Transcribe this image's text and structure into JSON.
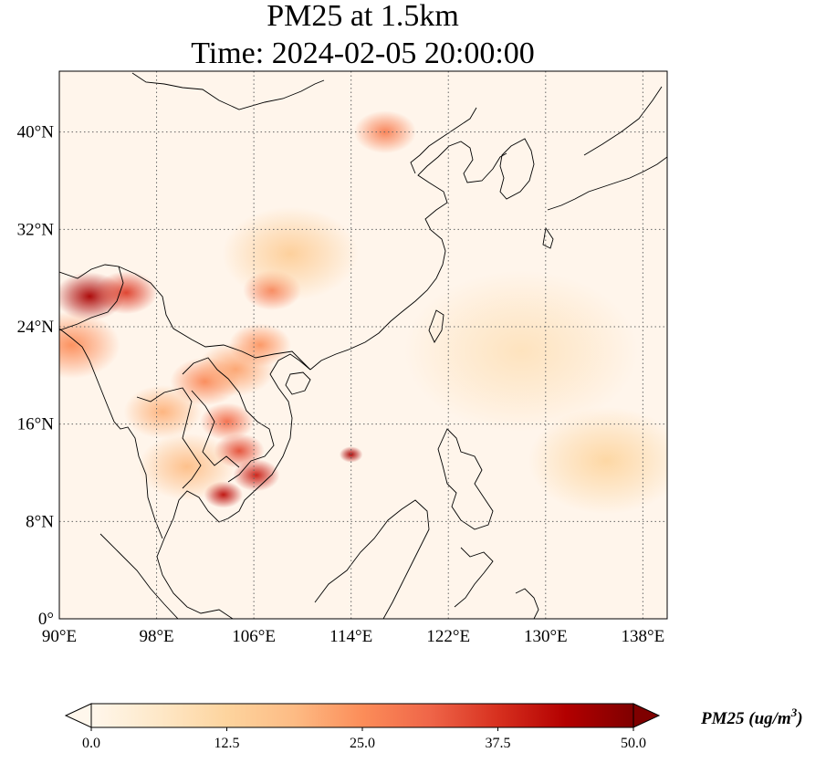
{
  "figure": {
    "title_line1": "PM25 at 1.5km",
    "title_line2": "Time: 2024-02-05 20:00:00"
  },
  "map": {
    "projection": "PlateCarree",
    "lon_range": [
      90,
      140
    ],
    "lat_range": [
      0,
      45
    ],
    "lon_ticks": [
      {
        "value": 90,
        "label": "90°E"
      },
      {
        "value": 98,
        "label": "98°E"
      },
      {
        "value": 106,
        "label": "106°E"
      },
      {
        "value": 114,
        "label": "114°E"
      },
      {
        "value": 122,
        "label": "122°E"
      },
      {
        "value": 130,
        "label": "130°E"
      },
      {
        "value": 138,
        "label": "138°E"
      }
    ],
    "lat_ticks": [
      {
        "value": 0,
        "label": "0°"
      },
      {
        "value": 8,
        "label": "8°N"
      },
      {
        "value": 16,
        "label": "16°N"
      },
      {
        "value": 24,
        "label": "24°N"
      },
      {
        "value": 32,
        "label": "32°N"
      },
      {
        "value": 40,
        "label": "40°N"
      }
    ],
    "gridlines": "dotted",
    "background_color": "#fff5eb",
    "hotspots": [
      {
        "lon": 92.5,
        "lat": 26.5,
        "value": 45,
        "spread": 1.8
      },
      {
        "lon": 95.5,
        "lat": 26.8,
        "value": 36,
        "spread": 1.6
      },
      {
        "lon": 91,
        "lat": 22.5,
        "value": 25,
        "spread": 2.5
      },
      {
        "lon": 103.5,
        "lat": 10.2,
        "value": 42,
        "spread": 1.0
      },
      {
        "lon": 106.2,
        "lat": 11.8,
        "value": 40,
        "spread": 1.2
      },
      {
        "lon": 104.8,
        "lat": 13.8,
        "value": 34,
        "spread": 1.3
      },
      {
        "lon": 103.8,
        "lat": 16.2,
        "value": 30,
        "spread": 1.4
      },
      {
        "lon": 102.0,
        "lat": 19.5,
        "value": 26,
        "spread": 1.8
      },
      {
        "lon": 104.5,
        "lat": 20.5,
        "value": 22,
        "spread": 2.0
      },
      {
        "lon": 106.5,
        "lat": 22.5,
        "value": 24,
        "spread": 1.6
      },
      {
        "lon": 107.5,
        "lat": 27.0,
        "value": 28,
        "spread": 1.5
      },
      {
        "lon": 114.0,
        "lat": 13.5,
        "value": 45,
        "spread": 0.6
      },
      {
        "lon": 116.8,
        "lat": 40.0,
        "value": 27,
        "spread": 1.6
      },
      {
        "lon": 98.5,
        "lat": 17.0,
        "value": 20,
        "spread": 2.0
      },
      {
        "lon": 100.5,
        "lat": 12.5,
        "value": 18,
        "spread": 2.5
      },
      {
        "lon": 109.0,
        "lat": 30.0,
        "value": 14,
        "spread": 3.5
      },
      {
        "lon": 135.0,
        "lat": 13.0,
        "value": 12,
        "spread": 4.0
      },
      {
        "lon": 128.0,
        "lat": 22.0,
        "value": 8,
        "spread": 6.0
      }
    ]
  },
  "colorbar": {
    "vmin": 0.0,
    "vmax": 50.0,
    "tick_labels": [
      "0.0",
      "12.5",
      "25.0",
      "37.5",
      "50.0"
    ],
    "title": "PM25 (ug/m",
    "title_superscript": "3",
    "title_close": ")",
    "colormap": "OrRd",
    "colormap_stops": [
      "#fff7ec",
      "#fee8c8",
      "#fdd49e",
      "#fdbb84",
      "#fc8d59",
      "#ef6548",
      "#d7301f",
      "#b30000",
      "#7f0000"
    ]
  }
}
